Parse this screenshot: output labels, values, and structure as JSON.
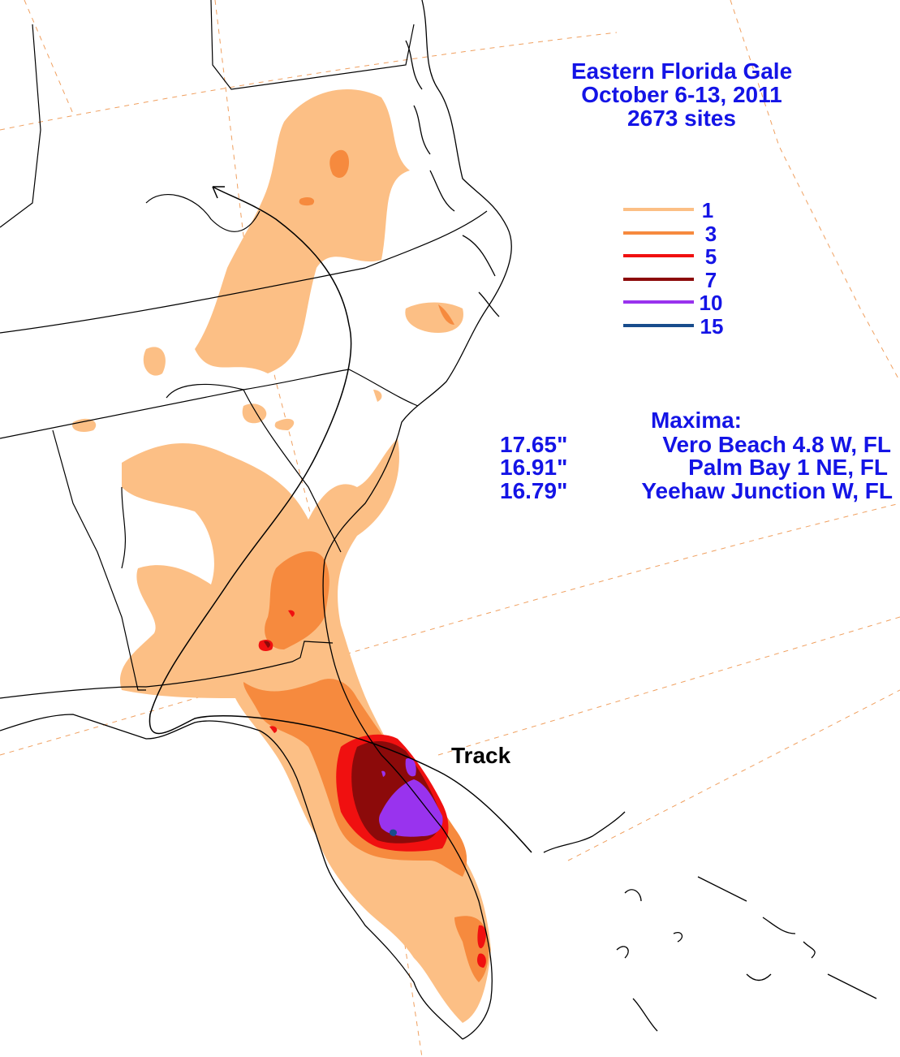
{
  "title": {
    "line1": "Eastern Florida Gale",
    "line2": "October 6-13, 2011",
    "line3": "2673 sites"
  },
  "legend": [
    {
      "label": "1",
      "color": "#fcbf85"
    },
    {
      "label": "3",
      "color": "#f68a3e"
    },
    {
      "label": "5",
      "color": "#f01010"
    },
    {
      "label": "7",
      "color": "#8c0a0a"
    },
    {
      "label": "10",
      "color": "#9933ee"
    },
    {
      "label": "15",
      "color": "#184c8c"
    }
  ],
  "maxima": {
    "heading": "Maxima:",
    "entries": [
      {
        "value": "17.65\"",
        "station": "Vero Beach 4.8 W, FL"
      },
      {
        "value": "16.91\"",
        "station": "Palm Bay 1 NE, FL"
      },
      {
        "value": "16.79\"",
        "station": "Yeehaw Junction W, FL"
      }
    ]
  },
  "track_label": "Track",
  "colors": {
    "text": "#1414e6",
    "grid": "#f0a060",
    "background": "#ffffff"
  }
}
